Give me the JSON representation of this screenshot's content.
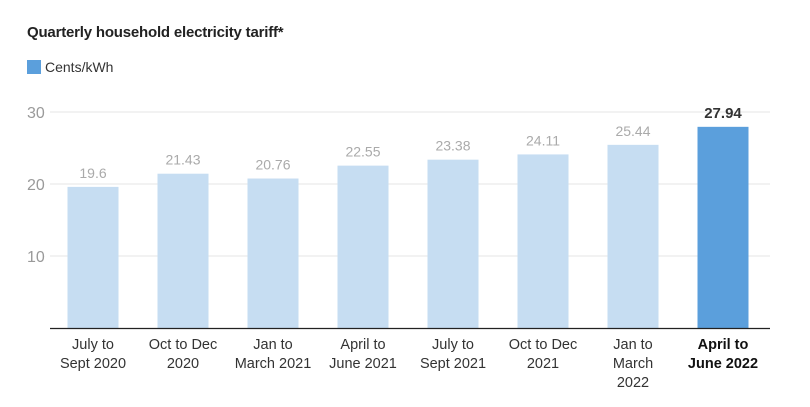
{
  "title": "Quarterly household electricity tariff*",
  "legend": {
    "label": "Cents/kWh",
    "color": "#5b9fdc"
  },
  "colors": {
    "bar": "#c6ddf2",
    "highlight": "#5b9fdc",
    "grid": "#e6e6e6",
    "axis": "#222222"
  },
  "chart_data": {
    "type": "bar",
    "title": "Quarterly household electricity tariff*",
    "xlabel": "",
    "ylabel": "",
    "unit": "Cents/kWh",
    "ylim": [
      0,
      30
    ],
    "yticks": [
      10,
      20,
      30
    ],
    "grid": true,
    "legend_position": "top-left",
    "categories": [
      "July to Sept 2020",
      "Oct to Dec 2020",
      "Jan to March 2021",
      "April to June 2021",
      "July to Sept 2021",
      "Oct to Dec 2021",
      "Jan to March 2022",
      "April to June 2022"
    ],
    "category_lines": [
      [
        "July to",
        "Sept 2020"
      ],
      [
        "Oct to Dec",
        "2020"
      ],
      [
        "Jan to",
        "March 2021"
      ],
      [
        "April to",
        "June 2021"
      ],
      [
        "July to",
        "Sept 2021"
      ],
      [
        "Oct to Dec",
        "2021"
      ],
      [
        "Jan to",
        "March",
        "2022"
      ],
      [
        "April to",
        "June 2022"
      ]
    ],
    "values": [
      19.6,
      21.43,
      20.76,
      22.55,
      23.38,
      24.11,
      25.44,
      27.94
    ],
    "value_labels": [
      "19.6",
      "21.43",
      "20.76",
      "22.55",
      "23.38",
      "24.11",
      "25.44",
      "27.94"
    ],
    "highlight_index": 7,
    "series": [
      {
        "name": "Cents/kWh",
        "values": [
          19.6,
          21.43,
          20.76,
          22.55,
          23.38,
          24.11,
          25.44,
          27.94
        ]
      }
    ]
  }
}
